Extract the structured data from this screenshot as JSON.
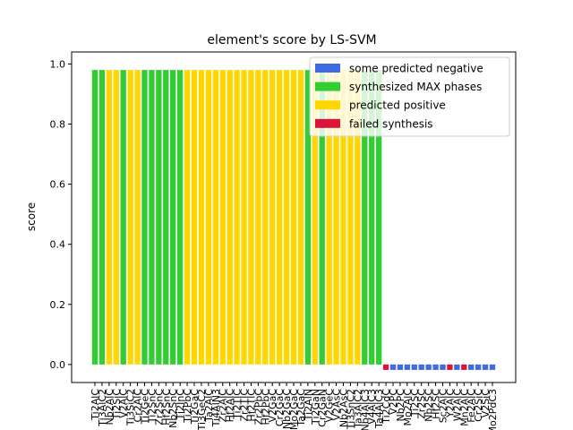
{
  "chart_data": {
    "type": "bar",
    "title": "element's score by LS-SVM",
    "xlabel": "",
    "ylabel": "score",
    "ylim": [
      -0.06,
      1.04
    ],
    "yticks": [
      0.0,
      0.2,
      0.4,
      0.6,
      0.8,
      1.0
    ],
    "ytick_labels": [
      "0.0",
      "0.2",
      "0.4",
      "0.6",
      "0.8",
      "1.0"
    ],
    "legend_position": "top-right",
    "groups": [
      {
        "key": "negative",
        "label": "some predicted negative",
        "color": "#4169e1"
      },
      {
        "key": "synthesized",
        "label": "synthesized MAX phases",
        "color": "#32cd32"
      },
      {
        "key": "positive",
        "label": "predicted positive",
        "color": "#ffd700"
      },
      {
        "key": "failed",
        "label": "failed synthesis",
        "color": "#dc143c"
      }
    ],
    "categories": [
      "Ti2AlC",
      "Ti3AlC2",
      "Nb2AlC",
      "Ti2SiC",
      "V2AlC",
      "Ti3SiC2",
      "Cr2AlC",
      "Ti2GeC",
      "Ti2SnC",
      "Zr2SnC",
      "Hf2SnC",
      "Nb2SnC",
      "Ti2InC",
      "Ti2PbC",
      "Ti2GaC",
      "Ti3GeC2",
      "Ta2AlC",
      "Ti4AlN3",
      "Zr2AlC",
      "Hf2AlC",
      "Ti2TlC",
      "Zr2TlC",
      "Hf2TlC",
      "Zr2PbC",
      "Hf2PbC",
      "V2GaC",
      "Cr2GaC",
      "Nb2GaC",
      "Mo2GaC",
      "Ta2GaC",
      "Ti2AlN",
      "Ti2GaN",
      "Cr2GaN",
      "V2GeC",
      "V2AsC",
      "Nb2AsC",
      "Ti3SnC2",
      "Ta3AlC2",
      "Nb4AlC3",
      "V4AlC3",
      "Ta4AlC3",
      "Ti2CdC",
      "V2PC",
      "Nb2PC",
      "Mo2AlC",
      "Ti2SC",
      "Zr2SC",
      "Nb2SC",
      "Hf2SC",
      "Sc2AlC",
      "Y2AlC",
      "W2AlC",
      "Mn2AlC",
      "Fe2AlC",
      "Cr2SiC",
      "V2SiC",
      "Mo2PdC3"
    ],
    "values": [
      0.98,
      0.98,
      0.98,
      0.98,
      0.98,
      0.98,
      0.98,
      0.98,
      0.98,
      0.98,
      0.98,
      0.98,
      0.98,
      0.98,
      0.98,
      0.98,
      0.98,
      0.98,
      0.98,
      0.98,
      0.98,
      0.98,
      0.98,
      0.98,
      0.98,
      0.98,
      0.98,
      0.98,
      0.98,
      0.98,
      0.98,
      0.98,
      0.98,
      0.98,
      0.98,
      0.98,
      0.98,
      0.98,
      0.98,
      0.98,
      0.98,
      -0.018,
      -0.018,
      -0.018,
      -0.018,
      -0.018,
      -0.018,
      -0.018,
      -0.018,
      -0.018,
      -0.018,
      -0.018,
      -0.018,
      -0.018,
      -0.018,
      -0.018,
      -0.018
    ],
    "bar_groups": [
      "synthesized",
      "synthesized",
      "positive",
      "positive",
      "synthesized",
      "positive",
      "positive",
      "synthesized",
      "synthesized",
      "synthesized",
      "synthesized",
      "synthesized",
      "synthesized",
      "positive",
      "positive",
      "positive",
      "positive",
      "positive",
      "positive",
      "positive",
      "positive",
      "positive",
      "positive",
      "positive",
      "positive",
      "positive",
      "positive",
      "positive",
      "positive",
      "positive",
      "synthesized",
      "positive",
      "synthesized",
      "positive",
      "positive",
      "positive",
      "positive",
      "positive",
      "synthesized",
      "synthesized",
      "synthesized",
      "failed",
      "negative",
      "negative",
      "negative",
      "negative",
      "negative",
      "negative",
      "negative",
      "negative",
      "failed",
      "negative",
      "failed",
      "negative",
      "negative",
      "negative",
      "negative"
    ]
  }
}
